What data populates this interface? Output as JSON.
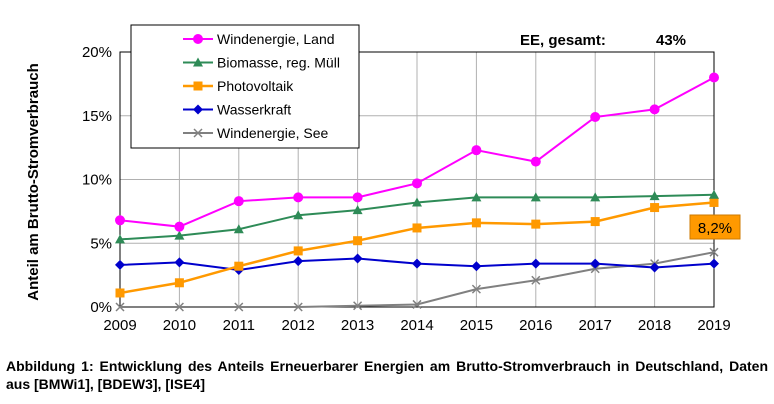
{
  "chart_data": {
    "type": "line",
    "title": "",
    "xlabel": "",
    "ylabel": "Anteil am Brutto-Stromverbrauch",
    "x": [
      2009,
      2010,
      2011,
      2012,
      2013,
      2014,
      2015,
      2016,
      2017,
      2018,
      2019
    ],
    "xticks": [
      "2009",
      "2010",
      "2011",
      "2012",
      "2013",
      "2014",
      "2015",
      "2016",
      "2017",
      "2018",
      "2019"
    ],
    "ylim": [
      0,
      20
    ],
    "yticks": [
      0,
      5,
      10,
      15,
      20
    ],
    "ytick_labels": [
      "0%",
      "5%",
      "10%",
      "15%",
      "20%"
    ],
    "grid": "horizontal and vertical",
    "legend_position": "top-left",
    "series": [
      {
        "name": "Windenergie, Land",
        "color": "#ff00ff",
        "marker": "circle",
        "values": [
          6.8,
          6.3,
          8.3,
          8.6,
          8.6,
          9.7,
          12.3,
          11.4,
          14.9,
          15.5,
          18.0
        ]
      },
      {
        "name": "Biomasse, reg. Müll",
        "color": "#2e8b57",
        "marker": "triangle",
        "values": [
          5.3,
          5.6,
          6.1,
          7.2,
          7.6,
          8.2,
          8.6,
          8.6,
          8.6,
          8.7,
          8.8
        ]
      },
      {
        "name": "Photovoltaik",
        "color": "#ff9900",
        "marker": "square",
        "values": [
          1.1,
          1.9,
          3.2,
          4.4,
          5.2,
          6.2,
          6.6,
          6.5,
          6.7,
          7.8,
          8.2
        ]
      },
      {
        "name": "Wasserkraft",
        "color": "#0000cc",
        "marker": "diamond",
        "values": [
          3.3,
          3.5,
          2.9,
          3.6,
          3.8,
          3.4,
          3.2,
          3.4,
          3.4,
          3.1,
          3.4
        ]
      },
      {
        "name": "Windenergie, See",
        "color": "#808080",
        "marker": "x",
        "values": [
          0.0,
          0.0,
          0.0,
          0.0,
          0.1,
          0.2,
          1.4,
          2.1,
          3.0,
          3.4,
          4.3
        ]
      }
    ],
    "annotations": [
      {
        "text": "EE, gesamt:",
        "position": "top-right"
      },
      {
        "text": "43%",
        "position": "top-right"
      },
      {
        "text": "8,2%",
        "position": "right",
        "box_color": "#ff9900"
      }
    ]
  },
  "caption": "Abbildung 1: Entwicklung des Anteils Erneuerbarer Energien am Brutto-Stromverbrauch in Deutschland, Daten aus [BMWi1], [BDEW3], [ISE4]"
}
